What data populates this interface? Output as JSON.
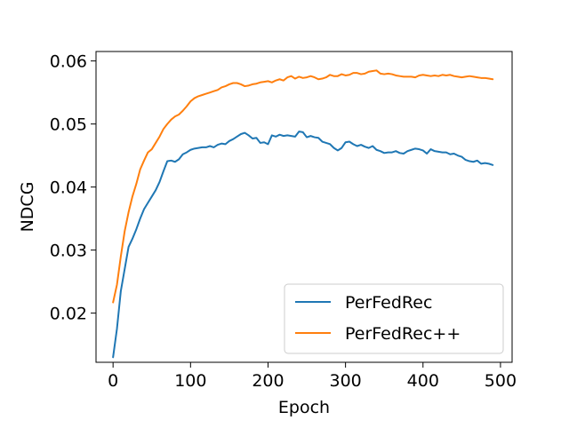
{
  "chart_data": {
    "type": "line",
    "title": "",
    "xlabel": "Epoch",
    "ylabel": "NDCG",
    "xlim": [
      -22,
      515
    ],
    "ylim": [
      0.0122,
      0.0615
    ],
    "xticks": [
      0,
      100,
      200,
      300,
      400,
      500
    ],
    "xtick_labels": [
      "0",
      "100",
      "200",
      "300",
      "400",
      "500"
    ],
    "yticks": [
      0.02,
      0.03,
      0.04,
      0.05,
      0.06
    ],
    "ytick_labels": [
      "0.02",
      "0.03",
      "0.04",
      "0.05",
      "0.06"
    ],
    "grid": false,
    "legend_position": "lower-right",
    "x": [
      0,
      5,
      10,
      15,
      20,
      25,
      30,
      35,
      40,
      45,
      50,
      55,
      60,
      65,
      70,
      75,
      80,
      85,
      90,
      95,
      100,
      105,
      110,
      115,
      120,
      125,
      130,
      135,
      140,
      145,
      150,
      155,
      160,
      165,
      170,
      175,
      180,
      185,
      190,
      195,
      200,
      205,
      210,
      215,
      220,
      225,
      230,
      235,
      240,
      245,
      250,
      255,
      260,
      265,
      270,
      275,
      280,
      285,
      290,
      295,
      300,
      305,
      310,
      315,
      320,
      325,
      330,
      335,
      340,
      345,
      350,
      355,
      360,
      365,
      370,
      375,
      380,
      385,
      390,
      395,
      400,
      405,
      410,
      415,
      420,
      425,
      430,
      435,
      440,
      445,
      450,
      455,
      460,
      465,
      470,
      475,
      480,
      485,
      490
    ],
    "series": [
      {
        "name": "PerFedRec",
        "color": "#1f77b4",
        "values": [
          0.013,
          0.0175,
          0.0235,
          0.027,
          0.0305,
          0.0318,
          0.0333,
          0.035,
          0.0365,
          0.0375,
          0.0385,
          0.0395,
          0.0408,
          0.0425,
          0.0441,
          0.0442,
          0.044,
          0.0444,
          0.0452,
          0.0455,
          0.0459,
          0.0461,
          0.0462,
          0.0463,
          0.0463,
          0.0465,
          0.0463,
          0.0467,
          0.0469,
          0.0468,
          0.0473,
          0.0476,
          0.048,
          0.0484,
          0.0486,
          0.0482,
          0.0477,
          0.0478,
          0.047,
          0.0471,
          0.0468,
          0.0482,
          0.048,
          0.0483,
          0.0481,
          0.0482,
          0.0481,
          0.048,
          0.0488,
          0.0487,
          0.0479,
          0.0481,
          0.0479,
          0.0478,
          0.0472,
          0.047,
          0.0468,
          0.0462,
          0.0458,
          0.0462,
          0.0471,
          0.0472,
          0.0468,
          0.0465,
          0.0467,
          0.0464,
          0.0462,
          0.0465,
          0.0459,
          0.0457,
          0.0454,
          0.0455,
          0.0455,
          0.0457,
          0.0454,
          0.0453,
          0.0457,
          0.0459,
          0.0461,
          0.046,
          0.0458,
          0.0453,
          0.046,
          0.0457,
          0.0456,
          0.0455,
          0.0455,
          0.0452,
          0.0453,
          0.045,
          0.0448,
          0.0443,
          0.0441,
          0.044,
          0.0442,
          0.0437,
          0.0438,
          0.0437,
          0.0435
        ]
      },
      {
        "name": "PerFedRec++",
        "color": "#ff7f0e",
        "values": [
          0.0217,
          0.0245,
          0.029,
          0.033,
          0.036,
          0.0385,
          0.0405,
          0.0428,
          0.0442,
          0.0455,
          0.046,
          0.047,
          0.048,
          0.0492,
          0.05,
          0.0507,
          0.0512,
          0.0515,
          0.0521,
          0.0528,
          0.0536,
          0.0541,
          0.0544,
          0.0546,
          0.0548,
          0.055,
          0.0552,
          0.0554,
          0.0558,
          0.056,
          0.0563,
          0.0565,
          0.0565,
          0.0563,
          0.056,
          0.0561,
          0.0563,
          0.0564,
          0.0566,
          0.0567,
          0.0568,
          0.0566,
          0.0569,
          0.0571,
          0.0569,
          0.0574,
          0.0576,
          0.0572,
          0.0575,
          0.0573,
          0.0574,
          0.0576,
          0.0574,
          0.0571,
          0.0572,
          0.0574,
          0.0578,
          0.0576,
          0.0576,
          0.0579,
          0.0577,
          0.0578,
          0.0581,
          0.0581,
          0.0579,
          0.058,
          0.0583,
          0.0584,
          0.0585,
          0.058,
          0.0579,
          0.058,
          0.0579,
          0.0577,
          0.0576,
          0.0575,
          0.0575,
          0.0575,
          0.0574,
          0.0577,
          0.0578,
          0.0577,
          0.0576,
          0.0577,
          0.0576,
          0.0578,
          0.0577,
          0.0578,
          0.0576,
          0.0575,
          0.0574,
          0.0575,
          0.0576,
          0.0575,
          0.0574,
          0.0573,
          0.0573,
          0.0572,
          0.0571
        ]
      }
    ]
  }
}
